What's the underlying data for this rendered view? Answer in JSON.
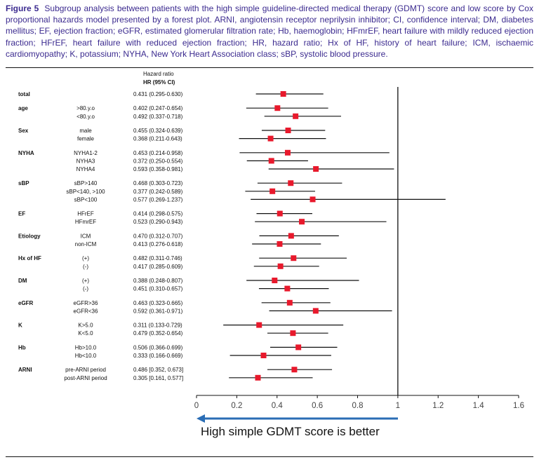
{
  "caption": {
    "label": "Figure 5",
    "text": "Subgroup analysis between patients with the high simple guideline-directed medical therapy (GDMT) score and low score by Cox proportional hazards model presented by a forest plot. ARNI, angiotensin receptor neprilysin inhibitor; CI, confidence interval; DM, diabetes mellitus; EF, ejection fraction; eGFR, estimated glomerular filtration rate; Hb, haemoglobin; HFmrEF, heart failure with mildly reduced ejection fraction; HFrEF, heart failure with reduced ejection fraction; HR, hazard ratio; Hx of HF, history of heart failure; ICM, ischaemic cardiomyopathy; K, potassium; NYHA, New York Heart Association class; sBP, systolic blood pressure."
  },
  "chart_data": {
    "type": "forest",
    "header_line1": "Hazard ratio",
    "header_line2": "HR (95% CI)",
    "xlim": [
      0,
      1.6
    ],
    "xticks": [
      "0",
      "0.2",
      "0.4",
      "0.6",
      "0.8",
      "1",
      "1.2",
      "1.4",
      "1.6"
    ],
    "reference_line": 1,
    "xlabel": "High simple GDMT score is better",
    "rows": [
      {
        "group": "total",
        "sub": "",
        "text": "0.431 (0.295-0.630)",
        "hr": 0.431,
        "lo": 0.295,
        "hi": 0.63
      },
      {
        "group": "age",
        "sub": ">80.y.o",
        "text": "0.402 (0.247-0.654)",
        "hr": 0.402,
        "lo": 0.247,
        "hi": 0.654
      },
      {
        "group": "",
        "sub": "<80.y.o",
        "text": "0.492 (0.337-0.718)",
        "hr": 0.492,
        "lo": 0.337,
        "hi": 0.718
      },
      {
        "group": "Sex",
        "sub": "male",
        "text": "0.455 (0.324-0.639)",
        "hr": 0.455,
        "lo": 0.324,
        "hi": 0.639
      },
      {
        "group": "",
        "sub": "female",
        "text": "0.368 (0.211-0.643)",
        "hr": 0.368,
        "lo": 0.211,
        "hi": 0.643
      },
      {
        "group": "NYHA",
        "sub": "NYHA1-2",
        "text": "0.453 (0.214-0.958)",
        "hr": 0.453,
        "lo": 0.214,
        "hi": 0.958
      },
      {
        "group": "",
        "sub": "NYHA3",
        "text": "0.372 (0.250-0.554)",
        "hr": 0.372,
        "lo": 0.25,
        "hi": 0.554
      },
      {
        "group": "",
        "sub": "NYHA4",
        "text": "0.593 (0.358-0.981)",
        "hr": 0.593,
        "lo": 0.358,
        "hi": 0.981
      },
      {
        "group": "sBP",
        "sub": "sBP>140",
        "text": "0.468 (0.303-0.723)",
        "hr": 0.468,
        "lo": 0.303,
        "hi": 0.723
      },
      {
        "group": "",
        "sub": "sBP<140, >100",
        "text": "0.377 (0.242-0.589)",
        "hr": 0.377,
        "lo": 0.242,
        "hi": 0.589
      },
      {
        "group": "",
        "sub": "sBP<100",
        "text": "0.577 (0.269-1.237)",
        "hr": 0.577,
        "lo": 0.269,
        "hi": 1.237
      },
      {
        "group": "EF",
        "sub": "HFrEF",
        "text": "0.414 (0.298-0.575)",
        "hr": 0.414,
        "lo": 0.298,
        "hi": 0.575
      },
      {
        "group": "",
        "sub": "HFmrEF",
        "text": "0.523 (0.290-0.943)",
        "hr": 0.523,
        "lo": 0.29,
        "hi": 0.943
      },
      {
        "group": "Etiology",
        "sub": "ICM",
        "text": "0.470 (0.312-0.707)",
        "hr": 0.47,
        "lo": 0.312,
        "hi": 0.707
      },
      {
        "group": "",
        "sub": "non-ICM",
        "text": "0.413 (0.276-0.618)",
        "hr": 0.413,
        "lo": 0.276,
        "hi": 0.618
      },
      {
        "group": "Hx of HF",
        "sub": "(+)",
        "text": "0.482 (0.311-0.746)",
        "hr": 0.482,
        "lo": 0.311,
        "hi": 0.746
      },
      {
        "group": "",
        "sub": "(-)",
        "text": "0.417 (0.285-0.609)",
        "hr": 0.417,
        "lo": 0.285,
        "hi": 0.609
      },
      {
        "group": "DM",
        "sub": "(+)",
        "text": "0.388 (0.248-0.807)",
        "hr": 0.388,
        "lo": 0.248,
        "hi": 0.807
      },
      {
        "group": "",
        "sub": "(-)",
        "text": "0.451 (0.310-0.657)",
        "hr": 0.451,
        "lo": 0.31,
        "hi": 0.657
      },
      {
        "group": "eGFR",
        "sub": "eGFR>36",
        "text": "0.463 (0.323-0.665)",
        "hr": 0.463,
        "lo": 0.323,
        "hi": 0.665
      },
      {
        "group": "",
        "sub": "eGFR<36",
        "text": "0.592 (0.361-0.971)",
        "hr": 0.592,
        "lo": 0.361,
        "hi": 0.971
      },
      {
        "group": "K",
        "sub": "K>5.0",
        "text": "0.311 (0.133-0.729)",
        "hr": 0.311,
        "lo": 0.133,
        "hi": 0.729
      },
      {
        "group": "",
        "sub": "K<5.0",
        "text": "0.479 (0.352-0.654)",
        "hr": 0.479,
        "lo": 0.352,
        "hi": 0.654
      },
      {
        "group": "Hb",
        "sub": "Hb>10.0",
        "text": "0.506 (0.366-0.699)",
        "hr": 0.506,
        "lo": 0.366,
        "hi": 0.699
      },
      {
        "group": "",
        "sub": "Hb<10.0",
        "text": "0.333 (0.166-0.669)",
        "hr": 0.333,
        "lo": 0.166,
        "hi": 0.669
      },
      {
        "group": "ARNI",
        "sub": "pre-ARNI period",
        "text": "0.486 [0.352, 0.673]",
        "hr": 0.486,
        "lo": 0.352,
        "hi": 0.673
      },
      {
        "group": "",
        "sub": "post-ARNI period",
        "text": "0.305 [0.161, 0.577]",
        "hr": 0.305,
        "lo": 0.161,
        "hi": 0.577
      }
    ],
    "colors": {
      "marker": "#e8192c",
      "arrow": "#2a6db5",
      "line": "#111111",
      "caption": "#3b2a8f"
    }
  }
}
